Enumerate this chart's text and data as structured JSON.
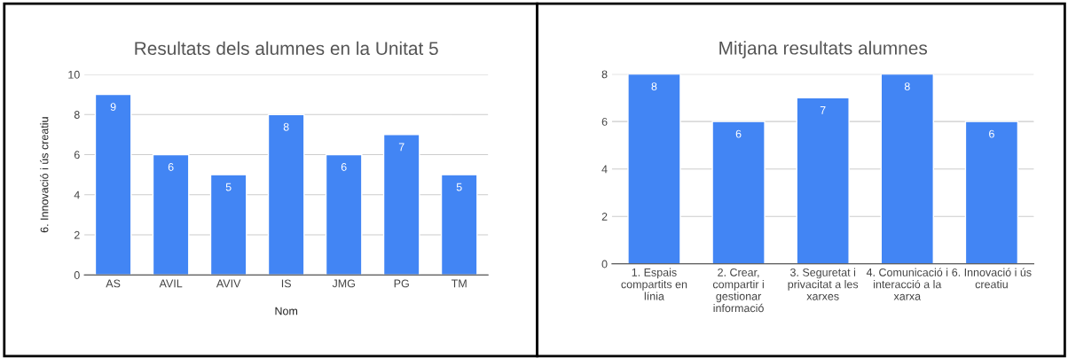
{
  "chart_data": [
    {
      "type": "bar",
      "title": "Resultats dels alumnes en la Unitat 5",
      "xlabel": "Nom",
      "ylabel": "6. Innovació i ús creatiu",
      "categories": [
        "AS",
        "AVIL",
        "AVIV",
        "IS",
        "JMG",
        "PG",
        "TM"
      ],
      "values": [
        9,
        6,
        5,
        8,
        6,
        7,
        5
      ],
      "color": "#4285f4",
      "ylim": [
        0,
        10
      ],
      "yticks": [
        0,
        2,
        4,
        6,
        8,
        10
      ],
      "grid": "y",
      "data_labels": true,
      "legend": false
    },
    {
      "type": "bar",
      "title": "Mitjana resultats alumnes",
      "categories": [
        "1. Espais\ncompartits en\nlínia",
        "2. Crear,\ncompartir i\ngestionar\ninformació",
        "3. Seguretat i\nprivacitat a les\nxarxes",
        "4. Comunicació i\ninteracció a la\nxarxa",
        "6. Innovació i ús\ncreatiu"
      ],
      "values": [
        8,
        6,
        7,
        8,
        6
      ],
      "color": "#4285f4",
      "ylim": [
        0,
        8
      ],
      "yticks": [
        0,
        2,
        4,
        6,
        8
      ],
      "grid": "y",
      "data_labels": true,
      "legend": false
    }
  ]
}
